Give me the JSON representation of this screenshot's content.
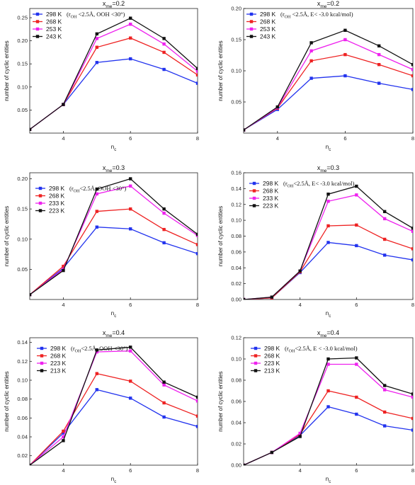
{
  "chart_data": [
    {
      "type": "line",
      "title": "x_me=0.2",
      "title_main": "x",
      "title_sub": "me",
      "title_rest": "=0.2",
      "xlabel_main": "n",
      "xlabel_sub": "c",
      "ylabel": "number of cyclic entities",
      "xlim": [
        3,
        8
      ],
      "ylim": [
        0,
        0.27
      ],
      "xticks": [
        "4",
        "6",
        "8"
      ],
      "yticks": [
        "0.05",
        "0.10",
        "0.15",
        "0.20",
        "0.25"
      ],
      "x": [
        3,
        4,
        5,
        6,
        7,
        8
      ],
      "series": [
        {
          "name": "298 K",
          "color": "#2233ee",
          "values": [
            0.008,
            0.062,
            0.153,
            0.161,
            0.138,
            0.108
          ]
        },
        {
          "name": "268 K",
          "color": "#ee2222",
          "values": [
            0.008,
            0.062,
            0.186,
            0.206,
            0.175,
            0.126
          ]
        },
        {
          "name": "253 K",
          "color": "#ee22ee",
          "values": [
            0.008,
            0.062,
            0.205,
            0.236,
            0.193,
            0.134
          ]
        },
        {
          "name": "243 K",
          "color": "#111111",
          "values": [
            0.008,
            0.062,
            0.215,
            0.249,
            0.205,
            0.14
          ]
        }
      ],
      "legend_note": {
        "pre": "(r",
        "sub": "OH",
        "post": " <2.5Å, OOH <30°)"
      }
    },
    {
      "type": "line",
      "title": "x_me=0.2",
      "title_main": "x",
      "title_sub": "me",
      "title_rest": "=0.2",
      "xlabel_main": "n",
      "xlabel_sub": "c",
      "ylabel": "number of cyclic entities",
      "xlim": [
        3,
        8
      ],
      "ylim": [
        0,
        0.2
      ],
      "xticks": [
        "4",
        "6",
        "8"
      ],
      "yticks": [
        "0.05",
        "0.10",
        "0.15",
        "0.20"
      ],
      "x": [
        3,
        4,
        5,
        6,
        7,
        8
      ],
      "series": [
        {
          "name": "298 K",
          "color": "#2233ee",
          "values": [
            0.005,
            0.038,
            0.088,
            0.092,
            0.08,
            0.07
          ]
        },
        {
          "name": "268 K",
          "color": "#ee2222",
          "values": [
            0.005,
            0.04,
            0.116,
            0.126,
            0.11,
            0.092
          ]
        },
        {
          "name": "253 K",
          "color": "#ee22ee",
          "values": [
            0.005,
            0.041,
            0.132,
            0.15,
            0.126,
            0.102
          ]
        },
        {
          "name": "243 K",
          "color": "#111111",
          "values": [
            0.005,
            0.042,
            0.145,
            0.165,
            0.14,
            0.11
          ]
        }
      ],
      "legend_note": {
        "pre": "(r",
        "sub": "OH",
        "post": " <2.5Å, E< -3.0 kcal/mol)"
      }
    },
    {
      "type": "line",
      "title": "x_me=0.3",
      "title_main": "x",
      "title_sub": "me",
      "title_rest": "=0.3",
      "xlabel_main": "n",
      "xlabel_sub": "c",
      "ylabel": "number of cyclic entities",
      "xlim": [
        3,
        8
      ],
      "ylim": [
        0,
        0.21
      ],
      "xticks": [
        "4",
        "6",
        "8"
      ],
      "yticks": [
        "0.05",
        "0.10",
        "0.15",
        "0.20"
      ],
      "x": [
        3,
        4,
        5,
        6,
        7,
        8
      ],
      "series": [
        {
          "name": "298 K",
          "color": "#2233ee",
          "values": [
            0.008,
            0.052,
            0.12,
            0.117,
            0.094,
            0.076
          ]
        },
        {
          "name": "268 K",
          "color": "#ee2222",
          "values": [
            0.008,
            0.055,
            0.146,
            0.15,
            0.116,
            0.091
          ]
        },
        {
          "name": "233 K",
          "color": "#ee22ee",
          "values": [
            0.008,
            0.05,
            0.175,
            0.188,
            0.143,
            0.106
          ]
        },
        {
          "name": "223 K",
          "color": "#111111",
          "values": [
            0.008,
            0.048,
            0.183,
            0.2,
            0.15,
            0.108
          ]
        }
      ],
      "legend_note": {
        "pre": "(r",
        "sub": "OH",
        "post": "<2.5Å, OOH <30°)"
      }
    },
    {
      "type": "line",
      "title": "x_me=0.3",
      "title_main": "x",
      "title_sub": "me",
      "title_rest": "=0.3",
      "xlabel_main": "n",
      "xlabel_sub": "c",
      "ylabel": "number of cyclic entities",
      "xlim": [
        2,
        8
      ],
      "ylim": [
        0,
        0.16
      ],
      "xticks": [
        "4",
        "6",
        "8"
      ],
      "yticks": [
        "0.00",
        "0.02",
        "0.04",
        "0.06",
        "0.08",
        "0.10",
        "0.12",
        "0.14",
        "0.16"
      ],
      "x": [
        2,
        3,
        4,
        5,
        6,
        7,
        8
      ],
      "series": [
        {
          "name": "298 K",
          "color": "#2233ee",
          "values": [
            0.0,
            0.002,
            0.034,
            0.072,
            0.068,
            0.056,
            0.05
          ]
        },
        {
          "name": "268 K",
          "color": "#ee2222",
          "values": [
            0.0,
            0.002,
            0.035,
            0.093,
            0.094,
            0.076,
            0.064
          ]
        },
        {
          "name": "233 K",
          "color": "#ee22ee",
          "values": [
            0.0,
            0.003,
            0.036,
            0.124,
            0.132,
            0.102,
            0.086
          ]
        },
        {
          "name": "223 K",
          "color": "#111111",
          "values": [
            0.0,
            0.003,
            0.036,
            0.133,
            0.143,
            0.111,
            0.09
          ]
        }
      ],
      "legend_note": {
        "pre": "(r",
        "sub": "OH",
        "post": "<2.5Å, E< -3.0 kcal/mol)"
      }
    },
    {
      "type": "line",
      "title": "x_me=0.4",
      "title_main": "x",
      "title_sub": "me",
      "title_rest": "=0.4",
      "xlabel_main": "n",
      "xlabel_sub": "c",
      "ylabel": "number of cyclic entities",
      "xlim": [
        3,
        8
      ],
      "ylim": [
        0.01,
        0.145
      ],
      "xticks": [
        "4",
        "6",
        "8"
      ],
      "yticks": [
        "0.02",
        "0.04",
        "0.06",
        "0.08",
        "0.10",
        "0.12",
        "0.14"
      ],
      "x": [
        3,
        4,
        5,
        6,
        7,
        8
      ],
      "series": [
        {
          "name": "298 K",
          "color": "#2233ee",
          "values": [
            0.01,
            0.044,
            0.09,
            0.081,
            0.061,
            0.051
          ]
        },
        {
          "name": "268 K",
          "color": "#ee2222",
          "values": [
            0.01,
            0.046,
            0.107,
            0.099,
            0.076,
            0.062
          ]
        },
        {
          "name": "223 K",
          "color": "#ee22ee",
          "values": [
            0.01,
            0.04,
            0.13,
            0.131,
            0.095,
            0.078
          ]
        },
        {
          "name": "213 K",
          "color": "#111111",
          "values": [
            0.01,
            0.036,
            0.132,
            0.135,
            0.098,
            0.082
          ]
        }
      ],
      "legend_note": {
        "pre": "(r",
        "sub": "OH",
        "post": "<2.5Å, OOH <30°)"
      }
    },
    {
      "type": "line",
      "title": "x_me=0.4",
      "title_main": "x",
      "title_sub": "me",
      "title_rest": "=0.4",
      "xlabel_main": "n",
      "xlabel_sub": "c",
      "ylabel": "number of cyclic entities",
      "xlim": [
        2,
        8
      ],
      "ylim": [
        0,
        0.12
      ],
      "xticks": [
        "4",
        "6",
        "8"
      ],
      "yticks": [
        "0.00",
        "0.02",
        "0.04",
        "0.06",
        "0.08",
        "0.10",
        "0.12"
      ],
      "x": [
        2,
        3,
        4,
        5,
        6,
        7,
        8
      ],
      "series": [
        {
          "name": "298 K",
          "color": "#2233ee",
          "values": [
            0.0,
            0.012,
            0.028,
            0.055,
            0.048,
            0.037,
            0.033
          ]
        },
        {
          "name": "268 K",
          "color": "#ee2222",
          "values": [
            0.0,
            0.012,
            0.029,
            0.07,
            0.064,
            0.05,
            0.044
          ]
        },
        {
          "name": "223 K",
          "color": "#ee22ee",
          "values": [
            0.0,
            0.012,
            0.03,
            0.095,
            0.095,
            0.071,
            0.064
          ]
        },
        {
          "name": "213 K",
          "color": "#111111",
          "values": [
            0.0,
            0.012,
            0.027,
            0.1,
            0.101,
            0.075,
            0.067
          ]
        }
      ],
      "legend_note": {
        "pre": "(r",
        "sub": "OH",
        "post": "<2.5Å, E < -3.0 kcal/mol)"
      }
    }
  ]
}
